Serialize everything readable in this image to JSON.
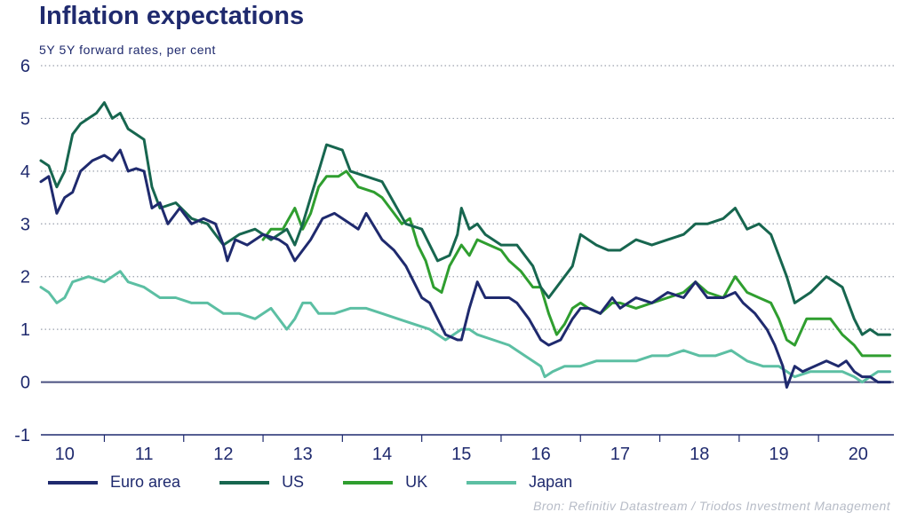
{
  "colors": {
    "euro": "#1f2a6e",
    "us": "#17664f",
    "uk": "#2f9e2f",
    "japan": "#5cbfa3",
    "text": "#1f2a6e"
  },
  "chart_data": {
    "type": "line",
    "title": "Inflation expectations",
    "subtitle": "5Y 5Y forward rates, per cent",
    "ylim": [
      -1,
      6
    ],
    "yticks": [
      "-1",
      "0",
      "1",
      "2",
      "3",
      "4",
      "5",
      "6"
    ],
    "xlim": [
      2009.7,
      2020.45
    ],
    "xticks": [
      {
        "label": "10",
        "x": 2010.0
      },
      {
        "label": "11",
        "x": 2011.0
      },
      {
        "label": "12",
        "x": 2012.0
      },
      {
        "label": "13",
        "x": 2013.0
      },
      {
        "label": "14",
        "x": 2014.0
      },
      {
        "label": "15",
        "x": 2015.0
      },
      {
        "label": "16",
        "x": 2016.0
      },
      {
        "label": "17",
        "x": 2017.0
      },
      {
        "label": "18",
        "x": 2018.0
      },
      {
        "label": "19",
        "x": 2019.0
      },
      {
        "label": "20",
        "x": 2020.0
      }
    ],
    "grid": "horizontal-dotted",
    "legend": "bottom",
    "source": "Bron: Refinitiv Datastream / Triodos Investment Management",
    "series": [
      {
        "name": "Euro area",
        "key": "euro",
        "x": [
          2009.7,
          2009.8,
          2009.9,
          2010.0,
          2010.1,
          2010.2,
          2010.35,
          2010.5,
          2010.6,
          2010.7,
          2010.8,
          2010.9,
          2011.0,
          2011.1,
          2011.2,
          2011.3,
          2011.45,
          2011.6,
          2011.75,
          2011.9,
          2012.0,
          2012.05,
          2012.15,
          2012.3,
          2012.5,
          2012.7,
          2012.8,
          2012.9,
          2013.0,
          2013.1,
          2013.25,
          2013.4,
          2013.5,
          2013.7,
          2013.8,
          2014.0,
          2014.15,
          2014.3,
          2014.4,
          2014.5,
          2014.6,
          2014.7,
          2014.8,
          2014.95,
          2015.0,
          2015.1,
          2015.2,
          2015.3,
          2015.45,
          2015.6,
          2015.7,
          2015.85,
          2016.0,
          2016.1,
          2016.25,
          2016.4,
          2016.5,
          2016.6,
          2016.75,
          2016.9,
          2017.0,
          2017.2,
          2017.4,
          2017.6,
          2017.8,
          2017.95,
          2018.1,
          2018.3,
          2018.45,
          2018.55,
          2018.7,
          2018.85,
          2018.95,
          2019.05,
          2019.1,
          2019.2,
          2019.3,
          2019.45,
          2019.6,
          2019.75,
          2019.85,
          2019.95,
          2020.05,
          2020.15,
          2020.25,
          2020.4
        ],
        "y": [
          3.8,
          3.9,
          3.2,
          3.5,
          3.6,
          4.0,
          4.2,
          4.3,
          4.2,
          4.4,
          4.0,
          4.05,
          4.0,
          3.3,
          3.4,
          3.0,
          3.3,
          3.0,
          3.1,
          3.0,
          2.6,
          2.3,
          2.7,
          2.6,
          2.8,
          2.7,
          2.6,
          2.3,
          2.5,
          2.7,
          3.1,
          3.2,
          3.1,
          2.9,
          3.2,
          2.7,
          2.5,
          2.2,
          1.9,
          1.6,
          1.5,
          1.2,
          0.9,
          0.8,
          0.8,
          1.4,
          1.9,
          1.6,
          1.6,
          1.6,
          1.5,
          1.2,
          0.8,
          0.7,
          0.8,
          1.2,
          1.4,
          1.4,
          1.3,
          1.6,
          1.4,
          1.6,
          1.5,
          1.7,
          1.6,
          1.9,
          1.6,
          1.6,
          1.7,
          1.5,
          1.3,
          1.0,
          0.7,
          0.3,
          -0.1,
          0.3,
          0.2,
          0.3,
          0.4,
          0.3,
          0.4,
          0.2,
          0.1,
          0.1,
          0.0,
          0.0
        ]
      },
      {
        "name": "US",
        "key": "us",
        "x": [
          2009.7,
          2009.8,
          2009.9,
          2010.0,
          2010.1,
          2010.2,
          2010.3,
          2010.4,
          2010.5,
          2010.6,
          2010.7,
          2010.8,
          2010.9,
          2011.0,
          2011.1,
          2011.2,
          2011.4,
          2011.6,
          2011.8,
          2012.0,
          2012.2,
          2012.4,
          2012.6,
          2012.8,
          2012.9,
          2013.0,
          2013.1,
          2013.2,
          2013.3,
          2013.5,
          2013.6,
          2013.8,
          2014.0,
          2014.15,
          2014.3,
          2014.5,
          2014.6,
          2014.7,
          2014.85,
          2014.95,
          2015.0,
          2015.1,
          2015.2,
          2015.3,
          2015.5,
          2015.7,
          2015.9,
          2016.0,
          2016.1,
          2016.25,
          2016.4,
          2016.5,
          2016.7,
          2016.85,
          2017.0,
          2017.2,
          2017.4,
          2017.6,
          2017.8,
          2017.95,
          2018.1,
          2018.3,
          2018.45,
          2018.6,
          2018.75,
          2018.9,
          2019.0,
          2019.1,
          2019.2,
          2019.4,
          2019.6,
          2019.8,
          2019.95,
          2020.05,
          2020.15,
          2020.25,
          2020.4
        ],
        "y": [
          4.2,
          4.1,
          3.7,
          4.0,
          4.7,
          4.9,
          5.0,
          5.1,
          5.3,
          5.0,
          5.1,
          4.8,
          4.7,
          4.6,
          3.7,
          3.3,
          3.4,
          3.1,
          3.0,
          2.6,
          2.8,
          2.9,
          2.7,
          2.9,
          2.6,
          3.0,
          3.5,
          4.0,
          4.5,
          4.4,
          4.0,
          3.9,
          3.8,
          3.4,
          3.0,
          2.9,
          2.6,
          2.3,
          2.4,
          2.8,
          3.3,
          2.9,
          3.0,
          2.8,
          2.6,
          2.6,
          2.2,
          1.8,
          1.6,
          1.9,
          2.2,
          2.8,
          2.6,
          2.5,
          2.5,
          2.7,
          2.6,
          2.7,
          2.8,
          3.0,
          3.0,
          3.1,
          3.3,
          2.9,
          3.0,
          2.8,
          2.4,
          2.0,
          1.5,
          1.7,
          2.0,
          1.8,
          1.2,
          0.9,
          1.0,
          0.9,
          0.9
        ]
      },
      {
        "name": "UK",
        "key": "uk",
        "x": [
          2012.5,
          2012.6,
          2012.75,
          2012.9,
          2013.0,
          2013.1,
          2013.2,
          2013.3,
          2013.45,
          2013.55,
          2013.7,
          2013.9,
          2014.0,
          2014.15,
          2014.25,
          2014.35,
          2014.45,
          2014.55,
          2014.65,
          2014.75,
          2014.85,
          2015.0,
          2015.1,
          2015.2,
          2015.35,
          2015.5,
          2015.6,
          2015.75,
          2015.9,
          2016.0,
          2016.1,
          2016.2,
          2016.3,
          2016.4,
          2016.5,
          2016.6,
          2016.75,
          2016.9,
          2017.0,
          2017.2,
          2017.4,
          2017.6,
          2017.8,
          2017.95,
          2018.1,
          2018.3,
          2018.45,
          2018.6,
          2018.75,
          2018.9,
          2019.0,
          2019.1,
          2019.2,
          2019.35,
          2019.5,
          2019.65,
          2019.8,
          2019.95,
          2020.05,
          2020.15,
          2020.25,
          2020.4
        ],
        "y": [
          2.7,
          2.9,
          2.9,
          3.3,
          2.9,
          3.2,
          3.7,
          3.9,
          3.9,
          4.0,
          3.7,
          3.6,
          3.5,
          3.2,
          3.0,
          3.1,
          2.6,
          2.3,
          1.8,
          1.7,
          2.2,
          2.6,
          2.4,
          2.7,
          2.6,
          2.5,
          2.3,
          2.1,
          1.8,
          1.8,
          1.3,
          0.9,
          1.1,
          1.4,
          1.5,
          1.4,
          1.3,
          1.5,
          1.5,
          1.4,
          1.5,
          1.6,
          1.7,
          1.9,
          1.7,
          1.6,
          2.0,
          1.7,
          1.6,
          1.5,
          1.2,
          0.8,
          0.7,
          1.2,
          1.2,
          1.2,
          0.9,
          0.7,
          0.5,
          0.5,
          0.5,
          0.5
        ]
      },
      {
        "name": "Japan",
        "key": "japan",
        "x": [
          2009.7,
          2009.8,
          2009.9,
          2010.0,
          2010.1,
          2010.3,
          2010.5,
          2010.7,
          2010.8,
          2011.0,
          2011.2,
          2011.4,
          2011.6,
          2011.8,
          2012.0,
          2012.2,
          2012.4,
          2012.6,
          2012.8,
          2012.9,
          2013.0,
          2013.1,
          2013.2,
          2013.4,
          2013.6,
          2013.8,
          2014.0,
          2014.2,
          2014.4,
          2014.6,
          2014.8,
          2014.9,
          2015.0,
          2015.1,
          2015.2,
          2015.4,
          2015.6,
          2015.8,
          2016.0,
          2016.05,
          2016.15,
          2016.3,
          2016.5,
          2016.7,
          2016.9,
          2017.0,
          2017.2,
          2017.4,
          2017.6,
          2017.8,
          2018.0,
          2018.2,
          2018.4,
          2018.6,
          2018.8,
          2019.0,
          2019.2,
          2019.4,
          2019.6,
          2019.8,
          2019.95,
          2020.05,
          2020.15,
          2020.25,
          2020.4
        ],
        "y": [
          1.8,
          1.7,
          1.5,
          1.6,
          1.9,
          2.0,
          1.9,
          2.1,
          1.9,
          1.8,
          1.6,
          1.6,
          1.5,
          1.5,
          1.3,
          1.3,
          1.2,
          1.4,
          1.0,
          1.2,
          1.5,
          1.5,
          1.3,
          1.3,
          1.4,
          1.4,
          1.3,
          1.2,
          1.1,
          1.0,
          0.8,
          0.9,
          1.0,
          1.0,
          0.9,
          0.8,
          0.7,
          0.5,
          0.3,
          0.1,
          0.2,
          0.3,
          0.3,
          0.4,
          0.4,
          0.4,
          0.4,
          0.5,
          0.5,
          0.6,
          0.5,
          0.5,
          0.6,
          0.4,
          0.3,
          0.3,
          0.1,
          0.2,
          0.2,
          0.2,
          0.1,
          0.0,
          0.1,
          0.2,
          0.2
        ]
      }
    ]
  }
}
